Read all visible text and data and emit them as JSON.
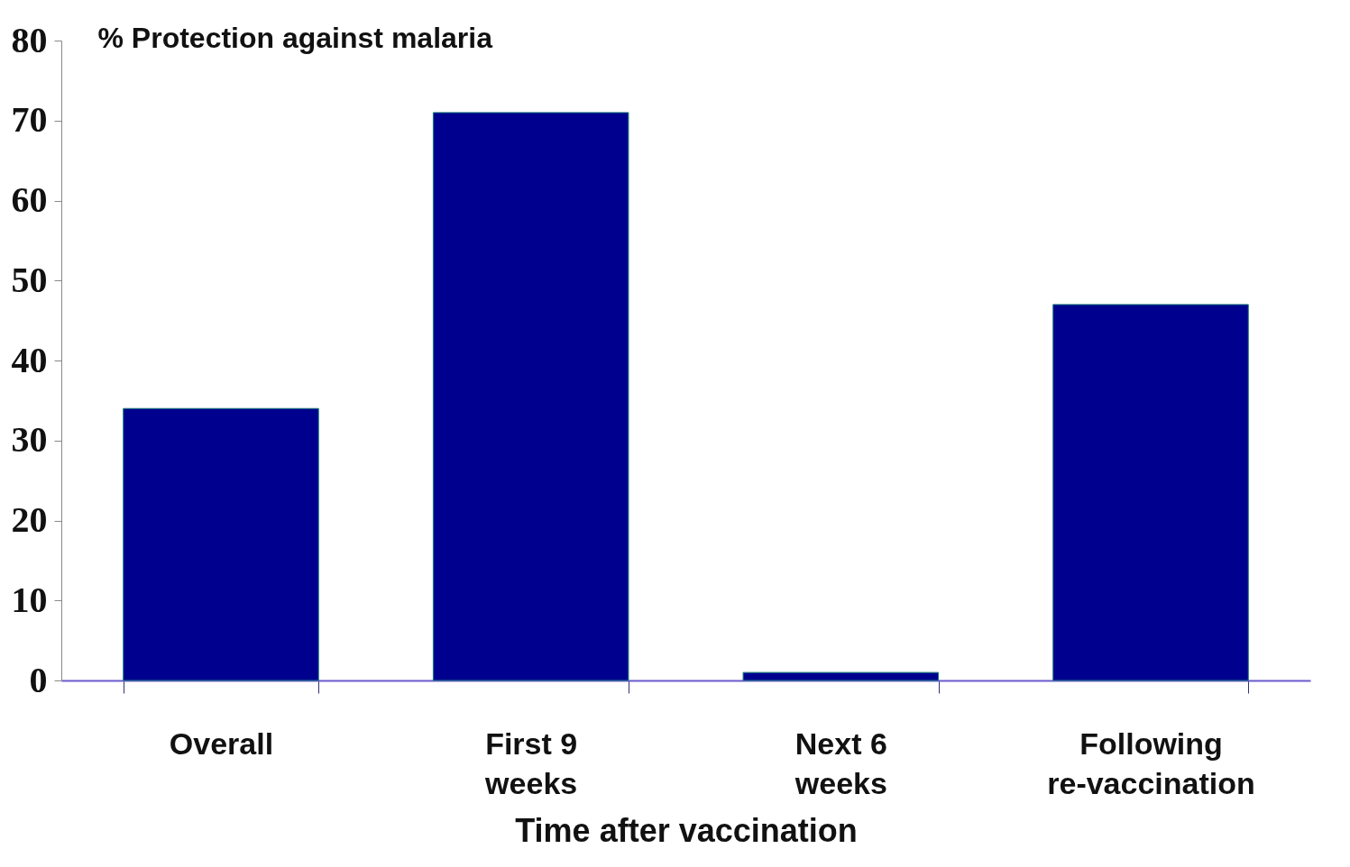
{
  "chart_data": {
    "type": "bar",
    "ylabel": "% Protection against malaria",
    "xlabel": "Time after vaccination",
    "categories": [
      "Overall",
      "First 9 weeks",
      "Next 6 weeks",
      "Following re-vaccination"
    ],
    "values": [
      34,
      71,
      1,
      47
    ],
    "color": "#00008e",
    "ylim": [
      0,
      80
    ],
    "yticks": [
      0,
      10,
      20,
      30,
      40,
      50,
      60,
      70,
      80
    ],
    "grid": false
  }
}
